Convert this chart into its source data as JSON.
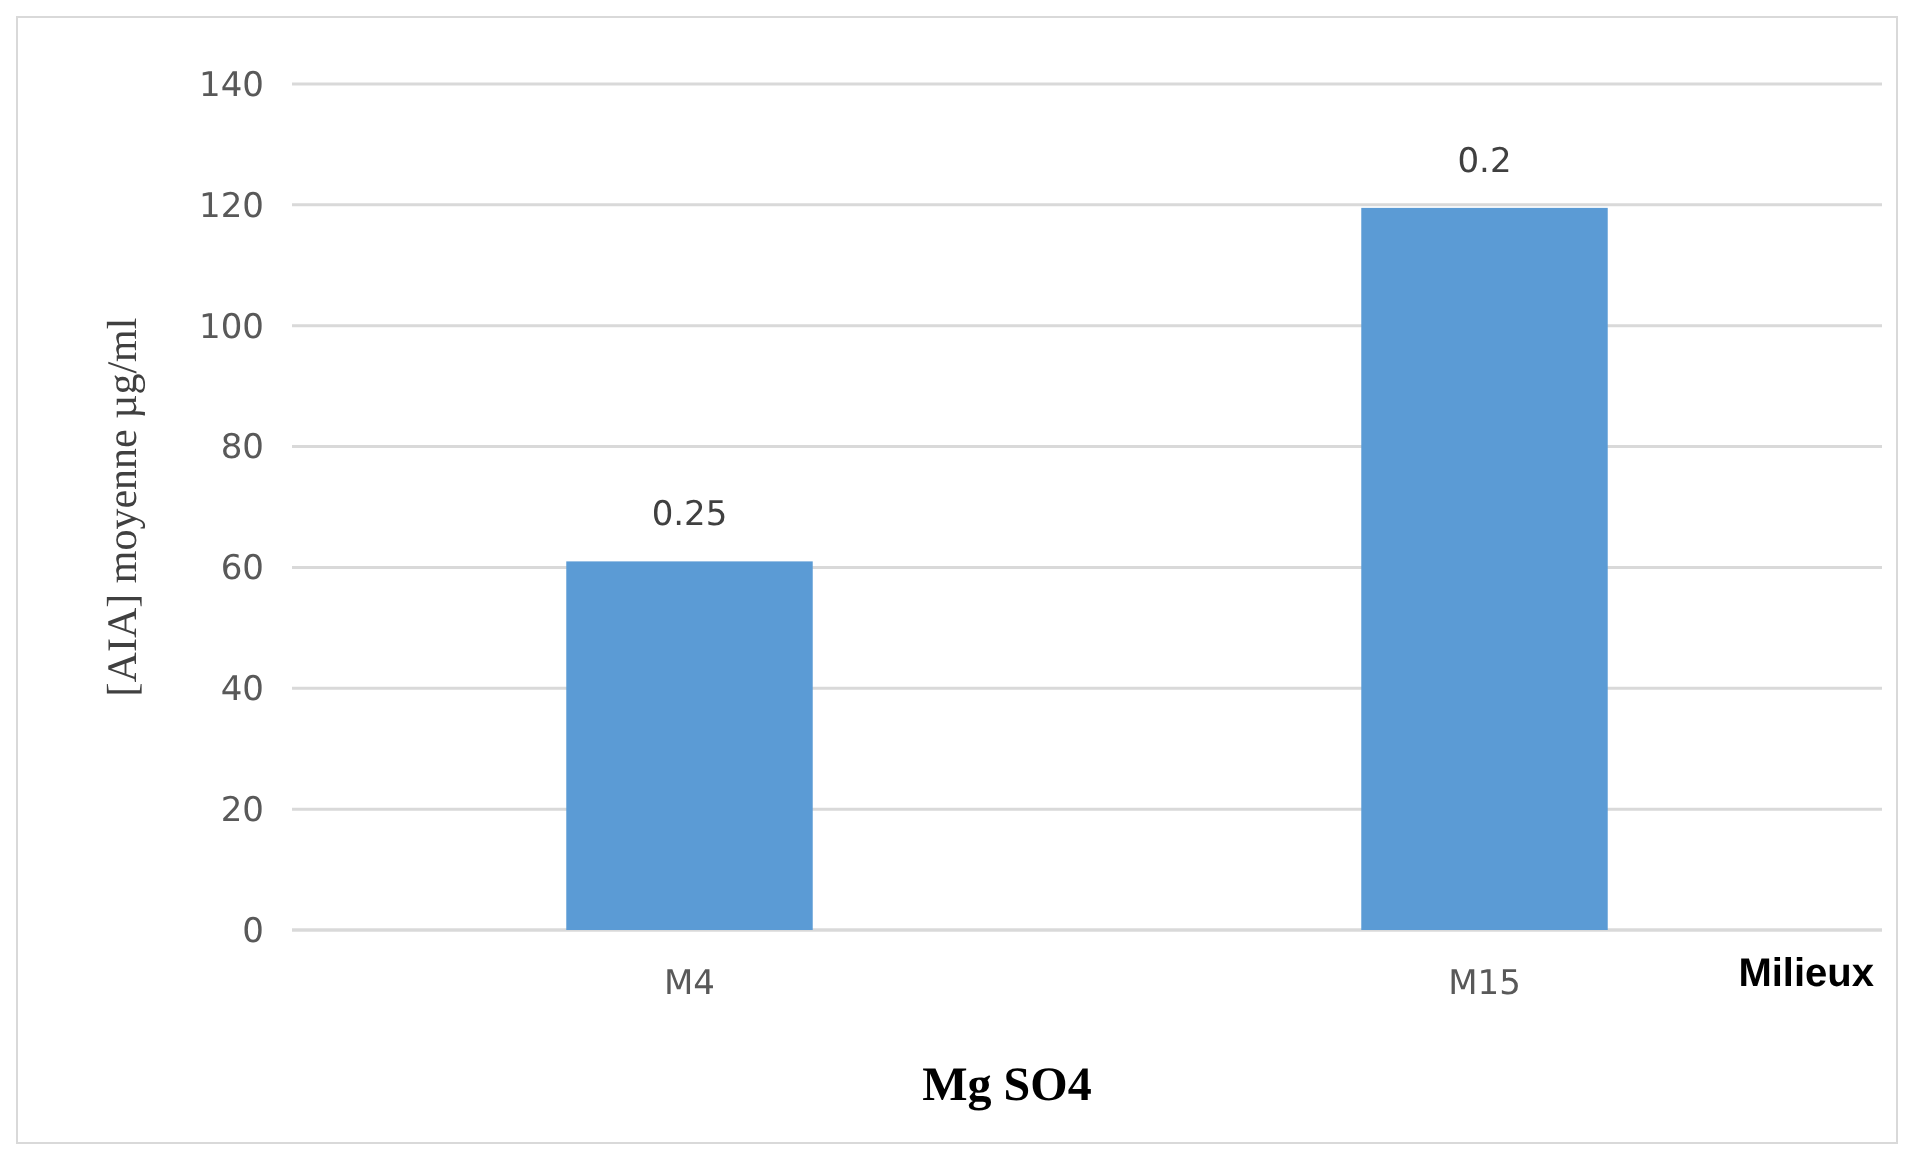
{
  "chart_data": {
    "type": "bar",
    "title": "Mg SO4",
    "xlabel": "Milieux",
    "ylabel": "[AIA] moyenne  µg/ml",
    "categories": [
      "M4",
      "M15"
    ],
    "values": [
      61,
      119.5
    ],
    "color": "#5b9bd5",
    "annotations": [
      {
        "text": "0.25",
        "x": "M4",
        "y": 61
      },
      {
        "text": "0.2",
        "x": "M15",
        "y": 119.5
      }
    ],
    "ylim": [
      0,
      140
    ],
    "yticks": [
      0,
      20,
      40,
      60,
      80,
      100,
      120,
      140
    ],
    "grid": "y"
  }
}
